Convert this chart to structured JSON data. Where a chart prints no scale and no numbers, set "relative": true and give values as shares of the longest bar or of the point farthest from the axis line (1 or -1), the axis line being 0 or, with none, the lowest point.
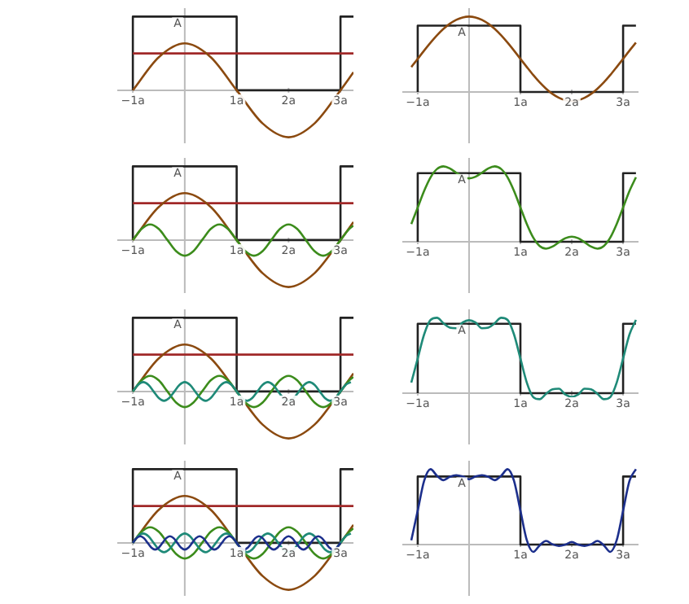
{
  "chart_data": [
    {
      "type": "line",
      "relative": true,
      "xlim": [
        -1.3,
        3.25
      ],
      "xticks": [
        {
          "value": -1,
          "label": "−1a"
        },
        {
          "value": 1,
          "label": "1a"
        },
        {
          "value": 2,
          "label": "2a"
        },
        {
          "value": 3,
          "label": "3a"
        }
      ],
      "annotations": [
        {
          "text": "A",
          "y": 1
        }
      ],
      "marker": "none",
      "series": [
        {
          "type": "step",
          "color": "#222222",
          "x": [
            -1,
            1,
            3,
            3.25
          ],
          "values": [
            0,
            1,
            0,
            1
          ]
        },
        {
          "color": "#a02828",
          "x": [
            -1,
            3.25
          ],
          "values": [
            0.5,
            0.5
          ]
        },
        {
          "color": "#8b4a10",
          "x": [
            -1,
            -0.5,
            0,
            0.5,
            1,
            1.5,
            2,
            2.5,
            3,
            3.25
          ],
          "values": [
            0,
            0.45,
            0.637,
            0.45,
            0,
            -0.45,
            -0.637,
            -0.45,
            0,
            0.244
          ]
        }
      ]
    },
    {
      "type": "line",
      "relative": true,
      "xlim": [
        -1.3,
        3.3
      ],
      "xticks": [
        {
          "value": -1,
          "label": "−1a"
        },
        {
          "value": 1,
          "label": "1a"
        },
        {
          "value": 2,
          "label": "2a"
        },
        {
          "value": 3,
          "label": "3a"
        }
      ],
      "annotations": [
        {
          "text": "A",
          "y": 0.88
        }
      ],
      "marker": "none",
      "series": [
        {
          "type": "step",
          "color": "#222222",
          "x": [
            -1,
            1,
            3,
            3.25
          ],
          "values": [
            0,
            0.88,
            0,
            0.88
          ]
        },
        {
          "color": "#8b4a10",
          "x": [
            -1.125,
            -1,
            -0.875,
            -0.75,
            -0.625,
            -0.5,
            -0.375,
            -0.25,
            -0.125,
            0,
            0.125,
            0.25,
            0.375,
            0.5,
            0.625,
            0.75,
            0.875,
            1,
            1.125,
            1.25,
            1.375,
            1.5,
            1.625,
            1.75,
            1.875,
            2,
            2.125,
            2.25,
            2.375,
            2.5,
            2.625,
            2.75,
            2.875,
            3,
            3.125,
            3.25
          ],
          "values": [
            0.331,
            0.44,
            0.549,
            0.654,
            0.751,
            0.836,
            0.905,
            0.957,
            0.989,
            1,
            0.989,
            0.957,
            0.905,
            0.836,
            0.751,
            0.654,
            0.549,
            0.44,
            0.331,
            0.225,
            0.128,
            0.044,
            -0.026,
            -0.077,
            -0.109,
            -0.12,
            -0.109,
            -0.077,
            -0.026,
            0.044,
            0.128,
            0.225,
            0.331,
            0.44,
            0.549,
            0.654
          ]
        }
      ]
    },
    {
      "type": "line",
      "relative": true,
      "xlim": [
        -1.3,
        3.25
      ],
      "xticks": [
        {
          "value": -1,
          "label": "−1a"
        },
        {
          "value": 1,
          "label": "1a"
        },
        {
          "value": 2,
          "label": "2a"
        },
        {
          "value": 3,
          "label": "3a"
        }
      ],
      "annotations": [
        {
          "text": "A",
          "y": 1
        }
      ],
      "marker": "none",
      "series": [
        {
          "type": "step",
          "color": "#222222",
          "x": [
            -1,
            1,
            3,
            3.25
          ],
          "values": [
            0,
            1,
            0,
            1
          ]
        },
        {
          "color": "#a02828",
          "x": [
            -1,
            3.25
          ],
          "values": [
            0.5,
            0.5
          ]
        },
        {
          "color": "#8b4a10",
          "x": [
            -1,
            -0.5,
            0,
            0.5,
            1,
            1.5,
            2,
            2.5,
            3,
            3.25
          ],
          "values": [
            0,
            0.45,
            0.637,
            0.45,
            0,
            -0.45,
            -0.637,
            -0.45,
            0,
            0.244
          ]
        },
        {
          "color": "#3c8c1c",
          "x": [
            -1,
            -0.833,
            -0.667,
            -0.5,
            -0.333,
            -0.167,
            0,
            0.167,
            0.333,
            0.5,
            0.667,
            0.833,
            1,
            1.167,
            1.333,
            1.5,
            1.667,
            1.833,
            2,
            2.167,
            2.333,
            2.5,
            2.667,
            2.833,
            3,
            3.167,
            3.25
          ],
          "values": [
            0,
            0.15,
            0.212,
            0.15,
            0,
            -0.15,
            -0.212,
            -0.15,
            0,
            0.15,
            0.212,
            0.15,
            0,
            -0.15,
            -0.212,
            -0.15,
            0,
            0.15,
            0.212,
            0.15,
            0,
            -0.15,
            -0.212,
            -0.15,
            0,
            0.15,
            0.196
          ]
        }
      ]
    },
    {
      "type": "line",
      "relative": true,
      "xlim": [
        -1.3,
        3.3
      ],
      "xticks": [
        {
          "value": -1,
          "label": "−1a"
        },
        {
          "value": 1,
          "label": "1a"
        },
        {
          "value": 2,
          "label": "2a"
        },
        {
          "value": 3,
          "label": "3a"
        }
      ],
      "annotations": [
        {
          "text": "A",
          "y": 0.909
        }
      ],
      "marker": "none",
      "series": [
        {
          "type": "step",
          "color": "#222222",
          "x": [
            -1,
            1,
            3,
            3.25
          ],
          "values": [
            0,
            0.909,
            0,
            0.909
          ]
        },
        {
          "color": "#3c8c1c",
          "x": [
            -1.125,
            -1,
            -0.875,
            -0.75,
            -0.625,
            -0.5,
            -0.375,
            -0.25,
            -0.125,
            0,
            0.125,
            0.25,
            0.375,
            0.5,
            0.625,
            0.75,
            0.875,
            1,
            1.125,
            1.25,
            1.375,
            1.5,
            1.625,
            1.75,
            1.875,
            2,
            2.125,
            2.25,
            2.375,
            2.5,
            2.625,
            2.75,
            2.875,
            3,
            3.125,
            3.25
          ],
          "values": [
            0.235,
            0.455,
            0.675,
            0.855,
            0.965,
            1,
            0.973,
            0.915,
            0.862,
            0.841,
            0.862,
            0.915,
            0.973,
            1,
            0.965,
            0.855,
            0.675,
            0.455,
            0.235,
            0.055,
            -0.056,
            -0.091,
            -0.064,
            -0.006,
            0.047,
            0.068,
            0.047,
            -0.006,
            -0.064,
            -0.091,
            -0.056,
            0.055,
            0.235,
            0.455,
            0.675,
            0.855
          ]
        }
      ]
    },
    {
      "type": "line",
      "relative": true,
      "xlim": [
        -1.3,
        3.25
      ],
      "xticks": [
        {
          "value": -1,
          "label": "−1a"
        },
        {
          "value": 1,
          "label": "1a"
        },
        {
          "value": 2,
          "label": "2a"
        },
        {
          "value": 3,
          "label": "3a"
        }
      ],
      "annotations": [
        {
          "text": "A",
          "y": 1
        }
      ],
      "marker": "none",
      "series": [
        {
          "type": "step",
          "color": "#222222",
          "x": [
            -1,
            1,
            3,
            3.25
          ],
          "values": [
            0,
            1,
            0,
            1
          ]
        },
        {
          "color": "#a02828",
          "x": [
            -1,
            3.25
          ],
          "values": [
            0.5,
            0.5
          ]
        },
        {
          "color": "#8b4a10",
          "x": [
            -1,
            -0.5,
            0,
            0.5,
            1,
            1.5,
            2,
            2.5,
            3,
            3.25
          ],
          "values": [
            0,
            0.45,
            0.637,
            0.45,
            0,
            -0.45,
            -0.637,
            -0.45,
            0,
            0.244
          ]
        },
        {
          "color": "#3c8c1c",
          "x": [
            -1,
            -0.833,
            -0.667,
            -0.5,
            -0.333,
            -0.167,
            0,
            0.167,
            0.333,
            0.5,
            0.667,
            0.833,
            1,
            1.167,
            1.333,
            1.5,
            1.667,
            1.833,
            2,
            2.167,
            2.333,
            2.5,
            2.667,
            2.833,
            3,
            3.167,
            3.25
          ],
          "values": [
            0,
            0.15,
            0.212,
            0.15,
            0,
            -0.15,
            -0.212,
            -0.15,
            0,
            0.15,
            0.212,
            0.15,
            0,
            -0.15,
            -0.212,
            -0.15,
            0,
            0.15,
            0.212,
            0.15,
            0,
            -0.15,
            -0.212,
            -0.15,
            0,
            0.15,
            0.196
          ]
        },
        {
          "color": "#1f8a78",
          "x": [
            -1,
            -0.9,
            -0.8,
            -0.7,
            -0.6,
            -0.5,
            -0.4,
            -0.3,
            -0.2,
            -0.1,
            0,
            0.1,
            0.2,
            0.3,
            0.4,
            0.5,
            0.6,
            0.7,
            0.8,
            0.9,
            1,
            1.1,
            1.2,
            1.3,
            1.4,
            1.5,
            1.6,
            1.7,
            1.8,
            1.9,
            2,
            2.1,
            2.2,
            2.3,
            2.4,
            2.5,
            2.6,
            2.7,
            2.8,
            2.9,
            3,
            3.1,
            3.2
          ],
          "values": [
            0,
            0.09,
            0.127,
            0.09,
            0,
            -0.09,
            -0.127,
            -0.09,
            0,
            0.09,
            0.127,
            0.09,
            0,
            -0.09,
            -0.127,
            -0.09,
            0,
            0.09,
            0.127,
            0.09,
            0,
            -0.09,
            -0.127,
            -0.09,
            0,
            0.09,
            0.127,
            0.09,
            0,
            -0.09,
            -0.127,
            -0.09,
            0,
            0.09,
            0.127,
            0.09,
            0,
            -0.09,
            -0.127,
            -0.09,
            0,
            0.09,
            0.127
          ]
        }
      ]
    },
    {
      "type": "line",
      "relative": true,
      "xlim": [
        -1.3,
        3.3
      ],
      "xticks": [
        {
          "value": -1,
          "label": "−1a"
        },
        {
          "value": 1,
          "label": "1a"
        },
        {
          "value": 2,
          "label": "2a"
        },
        {
          "value": 3,
          "label": "3a"
        }
      ],
      "annotations": [
        {
          "text": "A",
          "y": 0.92
        }
      ],
      "marker": "none",
      "series": [
        {
          "type": "step",
          "color": "#222222",
          "x": [
            -1,
            1,
            3,
            3.25
          ],
          "values": [
            0,
            0.92,
            0,
            0.92
          ]
        },
        {
          "color": "#1f8a78",
          "x": [
            -1.125,
            -1,
            -0.875,
            -0.75,
            -0.625,
            -0.5,
            -0.375,
            -0.25,
            -0.125,
            0,
            0.125,
            0.25,
            0.375,
            0.5,
            0.625,
            0.75,
            0.875,
            1,
            1.125,
            1.25,
            1.375,
            1.5,
            1.625,
            1.75,
            1.875,
            2,
            2.125,
            2.25,
            2.375,
            2.5,
            2.625,
            2.75,
            2.875,
            3,
            3.125,
            3.25
          ],
          "values": [
            0.14,
            0.46,
            0.78,
            0.972,
            1,
            0.929,
            0.869,
            0.861,
            0.937,
            0.968,
            0.937,
            0.861,
            0.869,
            0.929,
            1,
            0.972,
            0.78,
            0.46,
            0.14,
            -0.052,
            -0.08,
            -0.009,
            0.051,
            0.059,
            -0.017,
            -0.048,
            -0.017,
            0.059,
            0.051,
            -0.009,
            -0.08,
            -0.052,
            0.14,
            0.46,
            0.78,
            0.972
          ]
        }
      ]
    },
    {
      "type": "line",
      "relative": true,
      "xlim": [
        -1.3,
        3.25
      ],
      "xticks": [
        {
          "value": -1,
          "label": "−1a"
        },
        {
          "value": 1,
          "label": "1a"
        },
        {
          "value": 2,
          "label": "2a"
        },
        {
          "value": 3,
          "label": "3a"
        }
      ],
      "annotations": [
        {
          "text": "A",
          "y": 1
        }
      ],
      "marker": "none",
      "series": [
        {
          "type": "step",
          "color": "#222222",
          "x": [
            -1,
            1,
            3,
            3.25
          ],
          "values": [
            0,
            1,
            0,
            1
          ]
        },
        {
          "color": "#a02828",
          "x": [
            -1,
            3.25
          ],
          "values": [
            0.5,
            0.5
          ]
        },
        {
          "color": "#8b4a10",
          "x": [
            -1,
            -0.5,
            0,
            0.5,
            1,
            1.5,
            2,
            2.5,
            3,
            3.25
          ],
          "values": [
            0,
            0.45,
            0.637,
            0.45,
            0,
            -0.45,
            -0.637,
            -0.45,
            0,
            0.244
          ]
        },
        {
          "color": "#3c8c1c",
          "x": [
            -1,
            -0.833,
            -0.667,
            -0.5,
            -0.333,
            -0.167,
            0,
            0.167,
            0.333,
            0.5,
            0.667,
            0.833,
            1,
            1.167,
            1.333,
            1.5,
            1.667,
            1.833,
            2,
            2.167,
            2.333,
            2.5,
            2.667,
            2.833,
            3,
            3.167,
            3.25
          ],
          "values": [
            0,
            0.15,
            0.212,
            0.15,
            0,
            -0.15,
            -0.212,
            -0.15,
            0,
            0.15,
            0.212,
            0.15,
            0,
            -0.15,
            -0.212,
            -0.15,
            0,
            0.15,
            0.212,
            0.15,
            0,
            -0.15,
            -0.212,
            -0.15,
            0,
            0.15,
            0.196
          ]
        },
        {
          "color": "#1f8a78",
          "x": [
            -1,
            -0.9,
            -0.8,
            -0.7,
            -0.6,
            -0.5,
            -0.4,
            -0.3,
            -0.2,
            -0.1,
            0,
            0.1,
            0.2,
            0.3,
            0.4,
            0.5,
            0.6,
            0.7,
            0.8,
            0.9,
            1,
            1.1,
            1.2,
            1.3,
            1.4,
            1.5,
            1.6,
            1.7,
            1.8,
            1.9,
            2,
            2.1,
            2.2,
            2.3,
            2.4,
            2.5,
            2.6,
            2.7,
            2.8,
            2.9,
            3,
            3.1,
            3.2
          ],
          "values": [
            0,
            0.09,
            0.127,
            0.09,
            0,
            -0.09,
            -0.127,
            -0.09,
            0,
            0.09,
            0.127,
            0.09,
            0,
            -0.09,
            -0.127,
            -0.09,
            0,
            0.09,
            0.127,
            0.09,
            0,
            -0.09,
            -0.127,
            -0.09,
            0,
            0.09,
            0.127,
            0.09,
            0,
            -0.09,
            -0.127,
            -0.09,
            0,
            0.09,
            0.127,
            0.09,
            0,
            -0.09,
            -0.127,
            -0.09,
            0,
            0.09,
            0.127
          ]
        },
        {
          "color": "#1c2f8c",
          "x": [
            -1,
            -0.929,
            -0.857,
            -0.786,
            -0.714,
            -0.643,
            -0.571,
            -0.5,
            -0.429,
            -0.357,
            -0.286,
            -0.214,
            -0.143,
            -0.071,
            0,
            0.071,
            0.143,
            0.214,
            0.286,
            0.357,
            0.429,
            0.5,
            0.571,
            0.643,
            0.714,
            0.786,
            0.857,
            0.929,
            1,
            1.071,
            1.143,
            1.214,
            1.286,
            1.357,
            1.429,
            1.5,
            1.571,
            1.643,
            1.714,
            1.786,
            1.857,
            1.929,
            2,
            2.071,
            2.143,
            2.214,
            2.286,
            2.357,
            2.429,
            2.5,
            2.571,
            2.643,
            2.714,
            2.786,
            2.857,
            2.929,
            3
          ],
          "values": [
            0,
            0.064,
            0.091,
            0.064,
            0,
            -0.064,
            -0.091,
            -0.064,
            0,
            0.064,
            0.091,
            0.064,
            0,
            -0.064,
            -0.091,
            -0.064,
            0,
            0.064,
            0.091,
            0.064,
            0,
            -0.064,
            -0.091,
            -0.064,
            0,
            0.064,
            0.091,
            0.064,
            0,
            -0.064,
            -0.091,
            -0.064,
            0,
            0.064,
            0.091,
            0.064,
            0,
            -0.064,
            -0.091,
            -0.064,
            0,
            0.064,
            0.091,
            0.064,
            0,
            -0.064,
            -0.091,
            -0.064,
            0,
            0.064,
            0.091,
            0.064,
            0,
            -0.064,
            -0.091,
            -0.064,
            0
          ]
        }
      ]
    },
    {
      "type": "line",
      "relative": true,
      "xlim": [
        -1.3,
        3.3
      ],
      "xticks": [
        {
          "value": -1,
          "label": "−1a"
        },
        {
          "value": 1,
          "label": "1a"
        },
        {
          "value": 2,
          "label": "2a"
        },
        {
          "value": 3,
          "label": "3a"
        }
      ],
      "annotations": [
        {
          "text": "A",
          "y": 0.903
        }
      ],
      "marker": "none",
      "series": [
        {
          "type": "step",
          "color": "#222222",
          "x": [
            -1,
            1,
            3,
            3.25
          ],
          "values": [
            0,
            0.903,
            0,
            0.903
          ]
        },
        {
          "color": "#1c2f8c",
          "x": [
            -1.125,
            -1,
            -0.875,
            -0.75,
            -0.625,
            -0.5,
            -0.375,
            -0.25,
            -0.125,
            0,
            0.125,
            0.25,
            0.375,
            0.5,
            0.625,
            0.75,
            0.875,
            1,
            1.125,
            1.25,
            1.375,
            1.5,
            1.625,
            1.75,
            1.875,
            2,
            2.125,
            2.25,
            2.375,
            2.5,
            2.625,
            2.75,
            2.875,
            3,
            3.125,
            3.25
          ],
          "values": [
            0.057,
            0.451,
            0.846,
            1,
            0.912,
            0.854,
            0.899,
            0.921,
            0.903,
            0.867,
            0.903,
            0.921,
            0.899,
            0.854,
            0.912,
            1,
            0.846,
            0.451,
            0.057,
            -0.097,
            -0.01,
            0.049,
            0.004,
            -0.018,
            -0.001,
            0.035,
            -0.001,
            -0.018,
            0.004,
            0.049,
            -0.01,
            -0.097,
            0.057,
            0.451,
            0.846,
            1
          ]
        }
      ]
    }
  ]
}
